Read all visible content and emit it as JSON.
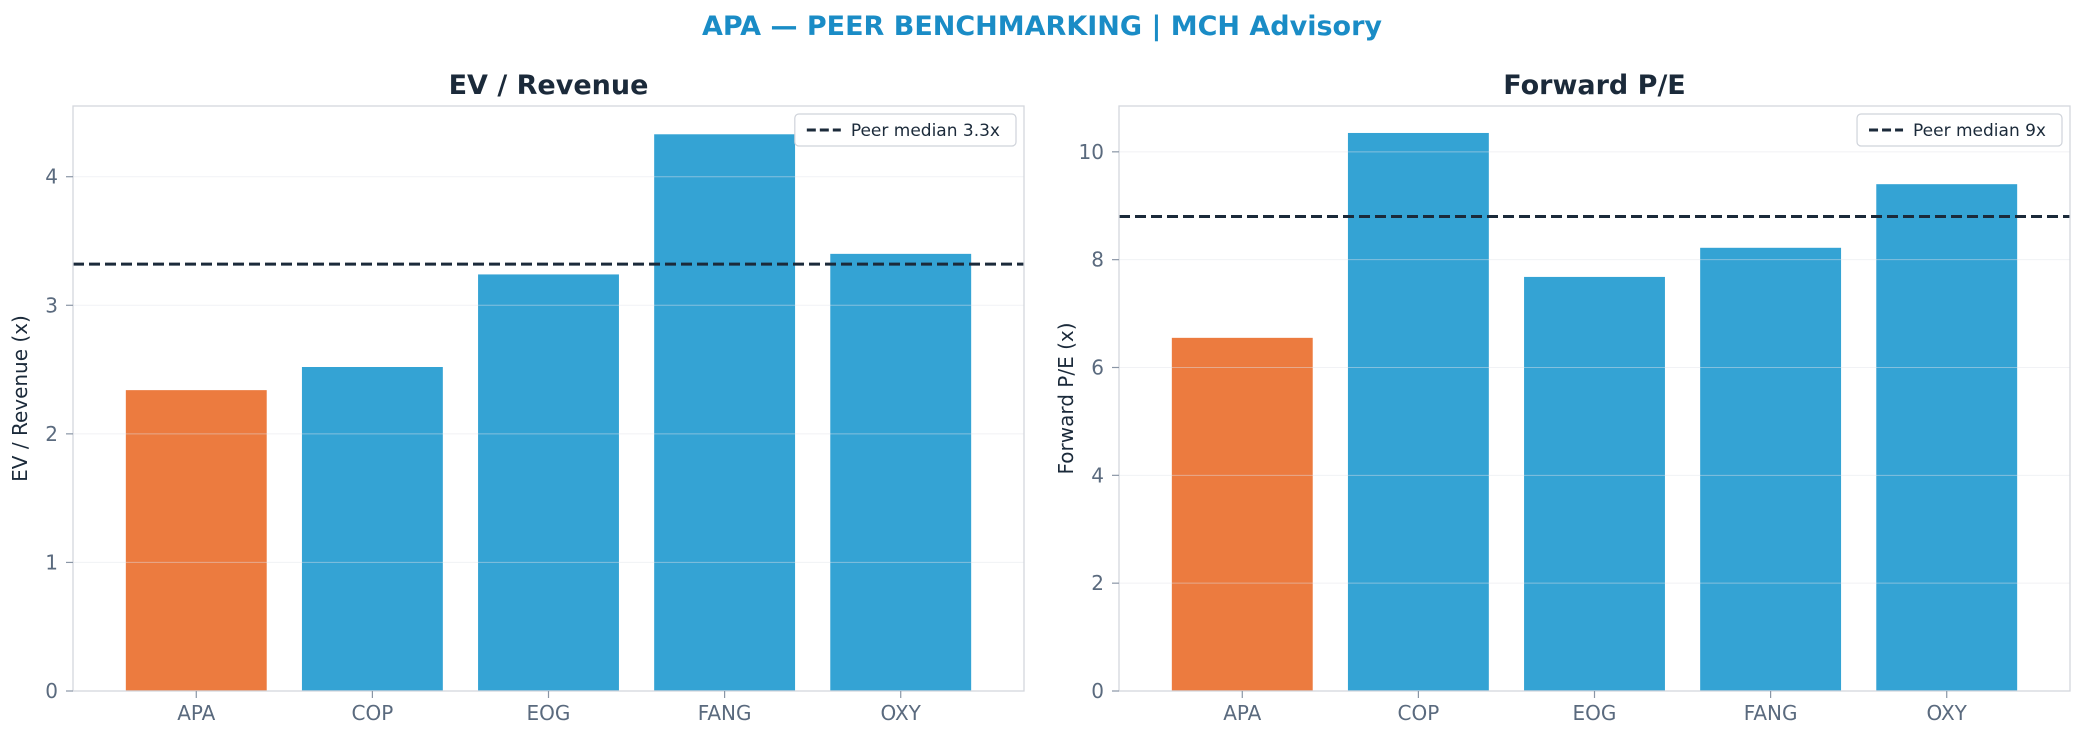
{
  "title": "APA — PEER BENCHMARKING | MCH Advisory",
  "colors": {
    "highlight": "#ec7b3f",
    "peer": "#34a3d4",
    "median_line": "#1b2a3a",
    "title": "#1a8cc6"
  },
  "chart_data": [
    {
      "type": "bar",
      "title": "EV / Revenue",
      "xlabel": "",
      "ylabel": "EV / Revenue (x)",
      "categories": [
        "APA",
        "COP",
        "EOG",
        "FANG",
        "OXY"
      ],
      "values": [
        2.34,
        2.52,
        3.24,
        4.33,
        3.4
      ],
      "highlight": "APA",
      "ylim": [
        0,
        4.55
      ],
      "yticks": [
        0,
        1,
        2,
        3,
        4
      ],
      "reference_line": {
        "value": 3.32,
        "label": "Peer median 3.3x"
      },
      "legend": "top-right",
      "grid": true
    },
    {
      "type": "bar",
      "title": "Forward P/E",
      "xlabel": "",
      "ylabel": "Forward P/E (x)",
      "categories": [
        "APA",
        "COP",
        "EOG",
        "FANG",
        "OXY"
      ],
      "values": [
        6.55,
        10.35,
        7.68,
        8.22,
        9.4
      ],
      "highlight": "APA",
      "ylim": [
        0,
        10.85
      ],
      "yticks": [
        0,
        2,
        4,
        6,
        8,
        10
      ],
      "reference_line": {
        "value": 8.8,
        "label": "Peer median 9x"
      },
      "legend": "top-right",
      "grid": true
    }
  ]
}
